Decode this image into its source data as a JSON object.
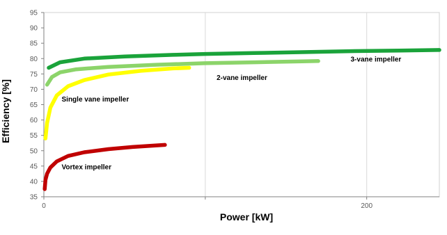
{
  "chart_data": {
    "type": "line",
    "title": "",
    "xlabel": "Power [kW]",
    "ylabel": "Efficiency [%]",
    "xlim": [
      0,
      245
    ],
    "ylim": [
      35,
      95
    ],
    "x_ticks": [
      0,
      100,
      200
    ],
    "x_tick_labels": [
      "0",
      "",
      "200"
    ],
    "y_ticks": [
      35,
      40,
      45,
      50,
      55,
      60,
      65,
      70,
      75,
      80,
      85,
      90,
      95
    ],
    "grid": "vertical",
    "series": [
      {
        "name": "3-vane impeller",
        "color": "#1aa33a",
        "x": [
          3,
          10,
          25,
          50,
          80,
          100,
          130,
          160,
          190,
          220,
          245
        ],
        "y": [
          77,
          78.8,
          80,
          80.7,
          81.2,
          81.5,
          81.8,
          82.1,
          82.4,
          82.6,
          82.8
        ]
      },
      {
        "name": "2-vane impeller",
        "color": "#8cd46a",
        "x": [
          2,
          5,
          10,
          20,
          40,
          70,
          100,
          130,
          160,
          170
        ],
        "y": [
          71.5,
          74,
          75.5,
          76.5,
          77.3,
          78,
          78.5,
          78.8,
          79.1,
          79.2
        ]
      },
      {
        "name": "Single vane impeller",
        "color": "#ffff00",
        "x": [
          1,
          2,
          4,
          8,
          15,
          25,
          40,
          60,
          80,
          90
        ],
        "y": [
          54,
          59,
          64,
          68,
          71,
          73,
          74.8,
          76,
          76.8,
          77
        ]
      },
      {
        "name": "Vortex impeller",
        "color": "#c00000",
        "x": [
          0.5,
          1,
          2,
          4,
          8,
          15,
          25,
          40,
          55,
          75
        ],
        "y": [
          37.5,
          40.5,
          42.5,
          44.5,
          46.5,
          48.3,
          49.5,
          50.5,
          51.2,
          51.9
        ]
      }
    ],
    "annotations": [
      {
        "text": "3-vane impeller",
        "x": 190,
        "y": 79
      },
      {
        "text": "2-vane impeller",
        "x": 107,
        "y": 73
      },
      {
        "text": "Single vane impeller",
        "x": 11,
        "y": 66
      },
      {
        "text": "Vortex impeller",
        "x": 11,
        "y": 44
      }
    ]
  }
}
